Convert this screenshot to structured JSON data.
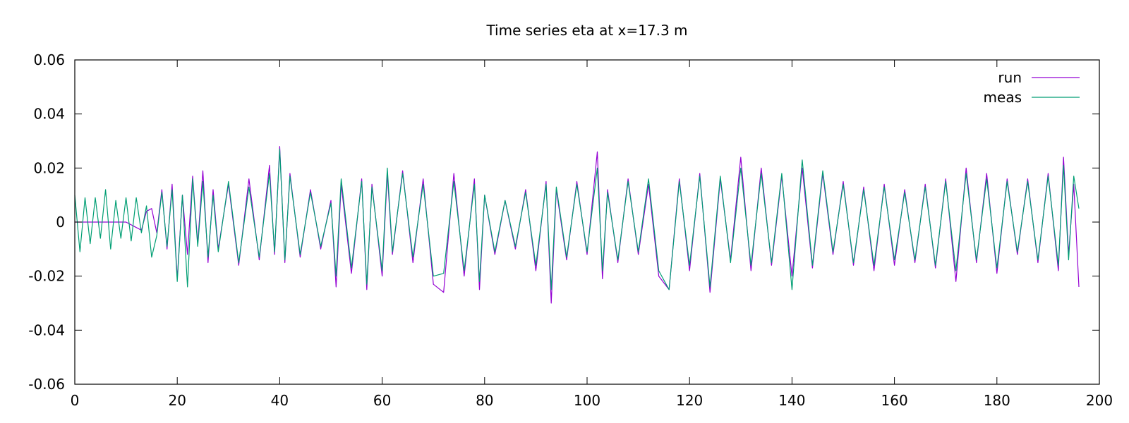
{
  "chart_data": {
    "type": "line",
    "title": "Time series eta at x=17.3 m",
    "xlabel": "",
    "ylabel": "",
    "xlim": [
      0,
      200
    ],
    "ylim": [
      -0.06,
      0.06
    ],
    "x_ticks": [
      0,
      20,
      40,
      60,
      80,
      100,
      120,
      140,
      160,
      180,
      200
    ],
    "x_tick_labels": [
      "0",
      "20",
      "40",
      "60",
      "80",
      "100",
      "120",
      "140",
      "160",
      "180",
      "200"
    ],
    "y_ticks": [
      0.06,
      0.04,
      0.02,
      0,
      -0.02,
      -0.04,
      -0.06
    ],
    "y_tick_labels": [
      "0.06",
      "0.04",
      "0.02",
      "0",
      "-0.02",
      "-0.04",
      "-0.06"
    ],
    "grid": false,
    "legend": {
      "position": "top-right"
    },
    "series": [
      {
        "name": "run",
        "color": "#9400d3",
        "x": [
          0,
          2,
          4,
          6,
          8,
          10,
          12,
          13,
          14,
          15,
          16,
          17,
          18,
          19,
          20,
          21,
          22,
          23,
          24,
          25,
          26,
          27,
          28,
          30,
          32,
          34,
          36,
          38,
          39,
          40,
          41,
          42,
          44,
          46,
          48,
          50,
          51,
          52,
          54,
          56,
          57,
          58,
          60,
          61,
          62,
          64,
          66,
          68,
          70,
          72,
          74,
          76,
          78,
          79,
          80,
          82,
          84,
          86,
          88,
          90,
          92,
          93,
          94,
          96,
          98,
          100,
          102,
          103,
          104,
          106,
          108,
          110,
          112,
          114,
          116,
          118,
          120,
          122,
          124,
          126,
          128,
          130,
          132,
          134,
          136,
          138,
          140,
          142,
          144,
          146,
          148,
          150,
          152,
          154,
          156,
          158,
          160,
          162,
          164,
          166,
          168,
          170,
          172,
          174,
          176,
          178,
          180,
          182,
          184,
          186,
          188,
          190,
          192,
          193,
          194,
          195,
          196
        ],
        "values": [
          0,
          0,
          0,
          0,
          0,
          0,
          -0.002,
          -0.003,
          0.004,
          0.005,
          -0.004,
          0.012,
          -0.01,
          0.014,
          -0.021,
          0.01,
          -0.012,
          0.017,
          -0.008,
          0.019,
          -0.015,
          0.012,
          -0.01,
          0.014,
          -0.016,
          0.016,
          -0.014,
          0.021,
          -0.012,
          0.028,
          -0.015,
          0.018,
          -0.013,
          0.012,
          -0.01,
          0.008,
          -0.024,
          0.014,
          -0.019,
          0.016,
          -0.025,
          0.014,
          -0.02,
          0.018,
          -0.012,
          0.019,
          -0.015,
          0.016,
          -0.023,
          -0.026,
          0.018,
          -0.02,
          0.016,
          -0.025,
          0.01,
          -0.012,
          0.008,
          -0.01,
          0.012,
          -0.018,
          0.015,
          -0.03,
          0.012,
          -0.014,
          0.015,
          -0.012,
          0.026,
          -0.021,
          0.012,
          -0.015,
          0.016,
          -0.012,
          0.014,
          -0.02,
          -0.025,
          0.016,
          -0.018,
          0.018,
          -0.026,
          0.016,
          -0.014,
          0.024,
          -0.018,
          0.02,
          -0.016,
          0.017,
          -0.02,
          0.02,
          -0.017,
          0.018,
          -0.012,
          0.015,
          -0.016,
          0.013,
          -0.018,
          0.014,
          -0.016,
          0.012,
          -0.015,
          0.014,
          -0.017,
          0.016,
          -0.022,
          0.02,
          -0.015,
          0.018,
          -0.019,
          0.016,
          -0.012,
          0.016,
          -0.015,
          0.018,
          -0.018,
          0.024,
          -0.012,
          0.014,
          -0.024
        ]
      },
      {
        "name": "meas",
        "color": "#009e73",
        "x": [
          0,
          1,
          2,
          3,
          4,
          5,
          6,
          7,
          8,
          9,
          10,
          11,
          12,
          13,
          14,
          15,
          16,
          17,
          18,
          19,
          20,
          21,
          22,
          23,
          24,
          25,
          26,
          27,
          28,
          30,
          32,
          34,
          36,
          38,
          39,
          40,
          41,
          42,
          44,
          46,
          48,
          50,
          51,
          52,
          54,
          56,
          57,
          58,
          60,
          61,
          62,
          64,
          66,
          68,
          70,
          72,
          74,
          76,
          78,
          79,
          80,
          82,
          84,
          86,
          88,
          90,
          92,
          93,
          94,
          96,
          98,
          100,
          102,
          103,
          104,
          106,
          108,
          110,
          112,
          114,
          116,
          118,
          120,
          122,
          124,
          126,
          128,
          130,
          132,
          134,
          136,
          138,
          140,
          142,
          144,
          146,
          148,
          150,
          152,
          154,
          156,
          158,
          160,
          162,
          164,
          166,
          168,
          170,
          172,
          174,
          176,
          178,
          180,
          182,
          184,
          186,
          188,
          190,
          192,
          193,
          194,
          195,
          196
        ],
        "values": [
          0.01,
          -0.011,
          0.009,
          -0.008,
          0.009,
          -0.006,
          0.012,
          -0.01,
          0.008,
          -0.006,
          0.009,
          -0.007,
          0.009,
          -0.004,
          0.006,
          -0.013,
          -0.005,
          0.011,
          -0.009,
          0.012,
          -0.022,
          0.01,
          -0.024,
          0.016,
          -0.009,
          0.015,
          -0.013,
          0.01,
          -0.011,
          0.015,
          -0.015,
          0.013,
          -0.013,
          0.018,
          -0.011,
          0.027,
          -0.014,
          0.017,
          -0.012,
          0.011,
          -0.009,
          0.007,
          -0.02,
          0.016,
          -0.017,
          0.015,
          -0.023,
          0.013,
          -0.018,
          0.02,
          -0.011,
          0.018,
          -0.013,
          0.014,
          -0.02,
          -0.019,
          0.015,
          -0.018,
          0.014,
          -0.022,
          0.01,
          -0.011,
          0.008,
          -0.009,
          0.011,
          -0.016,
          0.014,
          -0.025,
          0.013,
          -0.013,
          0.014,
          -0.011,
          0.02,
          -0.018,
          0.011,
          -0.014,
          0.015,
          -0.011,
          0.016,
          -0.018,
          -0.025,
          0.015,
          -0.016,
          0.017,
          -0.024,
          0.017,
          -0.015,
          0.02,
          -0.016,
          0.018,
          -0.015,
          0.018,
          -0.025,
          0.023,
          -0.016,
          0.019,
          -0.011,
          0.014,
          -0.015,
          0.012,
          -0.016,
          0.013,
          -0.014,
          0.011,
          -0.014,
          0.013,
          -0.016,
          0.015,
          -0.018,
          0.018,
          -0.014,
          0.016,
          -0.017,
          0.015,
          -0.011,
          0.015,
          -0.014,
          0.017,
          -0.016,
          0.021,
          -0.014,
          0.017,
          0.005
        ]
      }
    ]
  }
}
